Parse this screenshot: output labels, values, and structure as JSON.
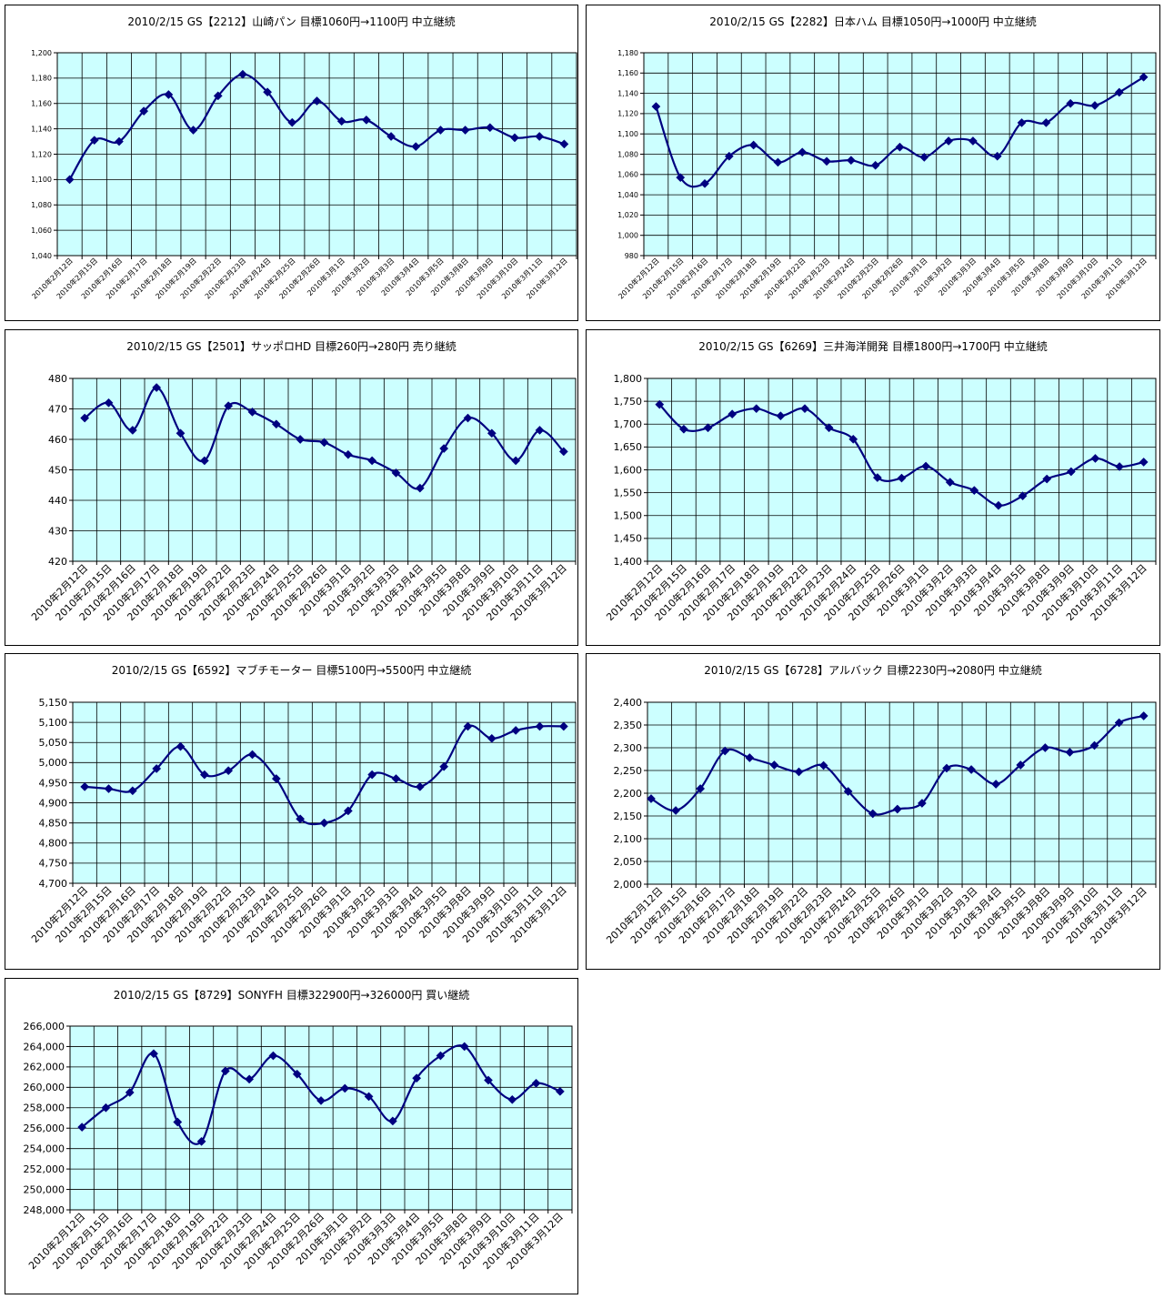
{
  "chart_data": [
    {
      "type": "line",
      "title": "2010/2/15 GS【2212】山崎パン 目標1060円→1100円 中立継続",
      "categories": [
        "2010年2月12日",
        "2010年2月15日",
        "2010年2月16日",
        "2010年2月17日",
        "2010年2月18日",
        "2010年2月19日",
        "2010年2月22日",
        "2010年2月23日",
        "2010年2月24日",
        "2010年2月25日",
        "2010年2月26日",
        "2010年3月1日",
        "2010年3月2日",
        "2010年3月3日",
        "2010年3月4日",
        "2010年3月5日",
        "2010年3月8日",
        "2010年3月9日",
        "2010年3月10日",
        "2010年3月11日",
        "2010年3月12日"
      ],
      "values": [
        1100,
        1131,
        1130,
        1154,
        1167,
        1139,
        1166,
        1183,
        1169,
        1145,
        1162,
        1146,
        1147,
        1134,
        1126,
        1139,
        1139,
        1141,
        1133,
        1134,
        1128
      ],
      "yticks": [
        "1,200",
        "1,180",
        "1,160",
        "1,140",
        "1,120",
        "1,100",
        "1,080",
        "1,060",
        "1,040"
      ],
      "ylim": [
        1040,
        1200
      ],
      "grid": true,
      "colors": {
        "plot_bg": "#ccffff",
        "line": "#000080",
        "grid": "#000000"
      }
    },
    {
      "type": "line",
      "title": "2010/2/15 GS【2282】日本ハム 目標1050円→1000円 中立継続",
      "categories": [
        "2010年2月12日",
        "2010年2月15日",
        "2010年2月16日",
        "2010年2月17日",
        "2010年2月18日",
        "2010年2月19日",
        "2010年2月22日",
        "2010年2月23日",
        "2010年2月24日",
        "2010年2月25日",
        "2010年2月26日",
        "2010年3月1日",
        "2010年3月2日",
        "2010年3月3日",
        "2010年3月4日",
        "2010年3月5日",
        "2010年3月8日",
        "2010年3月9日",
        "2010年3月10日",
        "2010年3月11日",
        "2010年3月12日"
      ],
      "values": [
        1127,
        1057,
        1051,
        1078,
        1089,
        1072,
        1082,
        1073,
        1074,
        1069,
        1087,
        1077,
        1093,
        1093,
        1078,
        1111,
        1111,
        1130,
        1128,
        1141,
        1156
      ],
      "yticks": [
        "1,180",
        "1,160",
        "1,140",
        "1,120",
        "1,100",
        "1,080",
        "1,060",
        "1,040",
        "1,020",
        "1,000",
        "980"
      ],
      "ylim": [
        980,
        1180
      ],
      "grid": true,
      "colors": {
        "plot_bg": "#ccffff",
        "line": "#000080",
        "grid": "#000000"
      }
    },
    {
      "type": "line",
      "title": "2010/2/15 GS【2501】サッポロHD 目標260円→280円 売り継続",
      "categories": [
        "2010年2月12日",
        "2010年2月15日",
        "2010年2月16日",
        "2010年2月17日",
        "2010年2月18日",
        "2010年2月19日",
        "2010年2月22日",
        "2010年2月23日",
        "2010年2月24日",
        "2010年2月25日",
        "2010年2月26日",
        "2010年3月1日",
        "2010年3月2日",
        "2010年3月3日",
        "2010年3月4日",
        "2010年3月5日",
        "2010年3月8日",
        "2010年3月9日",
        "2010年3月10日",
        "2010年3月11日",
        "2010年3月12日"
      ],
      "values": [
        467,
        472,
        463,
        477,
        462,
        453,
        471,
        469,
        465,
        460,
        459,
        455,
        453,
        449,
        444,
        457,
        467,
        462,
        453,
        463,
        456
      ],
      "yticks": [
        "480",
        "470",
        "460",
        "450",
        "440",
        "430",
        "420"
      ],
      "ylim": [
        420,
        480
      ],
      "grid": true,
      "colors": {
        "plot_bg": "#ccffff",
        "line": "#000080",
        "grid": "#000000"
      }
    },
    {
      "type": "line",
      "title": "2010/2/15 GS【6269】三井海洋開発 目標1800円→1700円 中立継続",
      "categories": [
        "2010年2月12日",
        "2010年2月15日",
        "2010年2月16日",
        "2010年2月17日",
        "2010年2月18日",
        "2010年2月19日",
        "2010年2月22日",
        "2010年2月23日",
        "2010年2月24日",
        "2010年2月25日",
        "2010年2月26日",
        "2010年3月1日",
        "2010年3月2日",
        "2010年3月3日",
        "2010年3月4日",
        "2010年3月5日",
        "2010年3月8日",
        "2010年3月9日",
        "2010年3月10日",
        "2010年3月11日",
        "2010年3月12日"
      ],
      "values": [
        1743,
        1689,
        1692,
        1722,
        1734,
        1718,
        1734,
        1692,
        1667,
        1583,
        1582,
        1608,
        1573,
        1555,
        1522,
        1543,
        1580,
        1596,
        1625,
        1607,
        1617
      ],
      "yticks": [
        "1,800",
        "1,750",
        "1,700",
        "1,650",
        "1,600",
        "1,550",
        "1,500",
        "1,450",
        "1,400"
      ],
      "ylim": [
        1400,
        1800
      ],
      "grid": true,
      "colors": {
        "plot_bg": "#ccffff",
        "line": "#000080",
        "grid": "#000000"
      }
    },
    {
      "type": "line",
      "title": "2010/2/15 GS【6592】マブチモーター 目標5100円→5500円 中立継続",
      "categories": [
        "2010年2月12日",
        "2010年2月15日",
        "2010年2月16日",
        "2010年2月17日",
        "2010年2月18日",
        "2010年2月19日",
        "2010年2月22日",
        "2010年2月23日",
        "2010年2月24日",
        "2010年2月25日",
        "2010年2月26日",
        "2010年3月1日",
        "2010年3月2日",
        "2010年3月3日",
        "2010年3月4日",
        "2010年3月5日",
        "2010年3月8日",
        "2010年3月9日",
        "2010年3月10日",
        "2010年3月11日",
        "2010年3月12日"
      ],
      "values": [
        4940,
        4935,
        4930,
        4985,
        5040,
        4970,
        4980,
        5020,
        4960,
        4860,
        4850,
        4880,
        4970,
        4960,
        4940,
        4990,
        5090,
        5060,
        5080,
        5090,
        5090
      ],
      "yticks": [
        "5,150",
        "5,100",
        "5,050",
        "5,000",
        "4,950",
        "4,900",
        "4,850",
        "4,800",
        "4,750",
        "4,700"
      ],
      "ylim": [
        4700,
        5150
      ],
      "grid": true,
      "colors": {
        "plot_bg": "#ccffff",
        "line": "#000080",
        "grid": "#000000"
      }
    },
    {
      "type": "line",
      "title": "2010/2/15 GS【6728】アルバック 目標2230円→2080円 中立継続",
      "categories": [
        "2010年2月12日",
        "2010年2月15日",
        "2010年2月16日",
        "2010年2月17日",
        "2010年2月18日",
        "2010年2月19日",
        "2010年2月22日",
        "2010年2月23日",
        "2010年2月24日",
        "2010年2月25日",
        "2010年2月26日",
        "2010年3月1日",
        "2010年3月2日",
        "2010年3月3日",
        "2010年3月4日",
        "2010年3月5日",
        "2010年3月8日",
        "2010年3月9日",
        "2010年3月10日",
        "2010年3月11日",
        "2010年3月12日"
      ],
      "values": [
        2188,
        2162,
        2210,
        2293,
        2278,
        2262,
        2247,
        2261,
        2204,
        2155,
        2165,
        2178,
        2255,
        2252,
        2220,
        2262,
        2300,
        2290,
        2305,
        2355,
        2370
      ],
      "yticks": [
        "2,400",
        "2,350",
        "2,300",
        "2,250",
        "2,200",
        "2,150",
        "2,100",
        "2,050",
        "2,000"
      ],
      "ylim": [
        2000,
        2400
      ],
      "grid": true,
      "colors": {
        "plot_bg": "#ccffff",
        "line": "#000080",
        "grid": "#000000"
      }
    },
    {
      "type": "line",
      "title": "2010/2/15 GS【8729】SONYFH 目標322900円→326000円 買い継続",
      "categories": [
        "2010年2月12日",
        "2010年2月15日",
        "2010年2月16日",
        "2010年2月17日",
        "2010年2月18日",
        "2010年2月19日",
        "2010年2月22日",
        "2010年2月23日",
        "2010年2月24日",
        "2010年2月25日",
        "2010年2月26日",
        "2010年3月1日",
        "2010年3月2日",
        "2010年3月3日",
        "2010年3月4日",
        "2010年3月5日",
        "2010年3月8日",
        "2010年3月9日",
        "2010年3月10日",
        "2010年3月11日",
        "2010年3月12日"
      ],
      "values": [
        256100,
        258000,
        259500,
        263300,
        256600,
        254700,
        261600,
        260800,
        263100,
        261300,
        258700,
        259900,
        259100,
        256700,
        260900,
        263100,
        264000,
        260700,
        258800,
        260400,
        259600
      ],
      "yticks": [
        "266,000",
        "264,000",
        "262,000",
        "260,000",
        "258,000",
        "256,000",
        "254,000",
        "252,000",
        "250,000",
        "248,000"
      ],
      "ylim": [
        248000,
        266000
      ],
      "grid": true,
      "colors": {
        "plot_bg": "#ccffff",
        "line": "#000080",
        "grid": "#000000"
      }
    }
  ]
}
